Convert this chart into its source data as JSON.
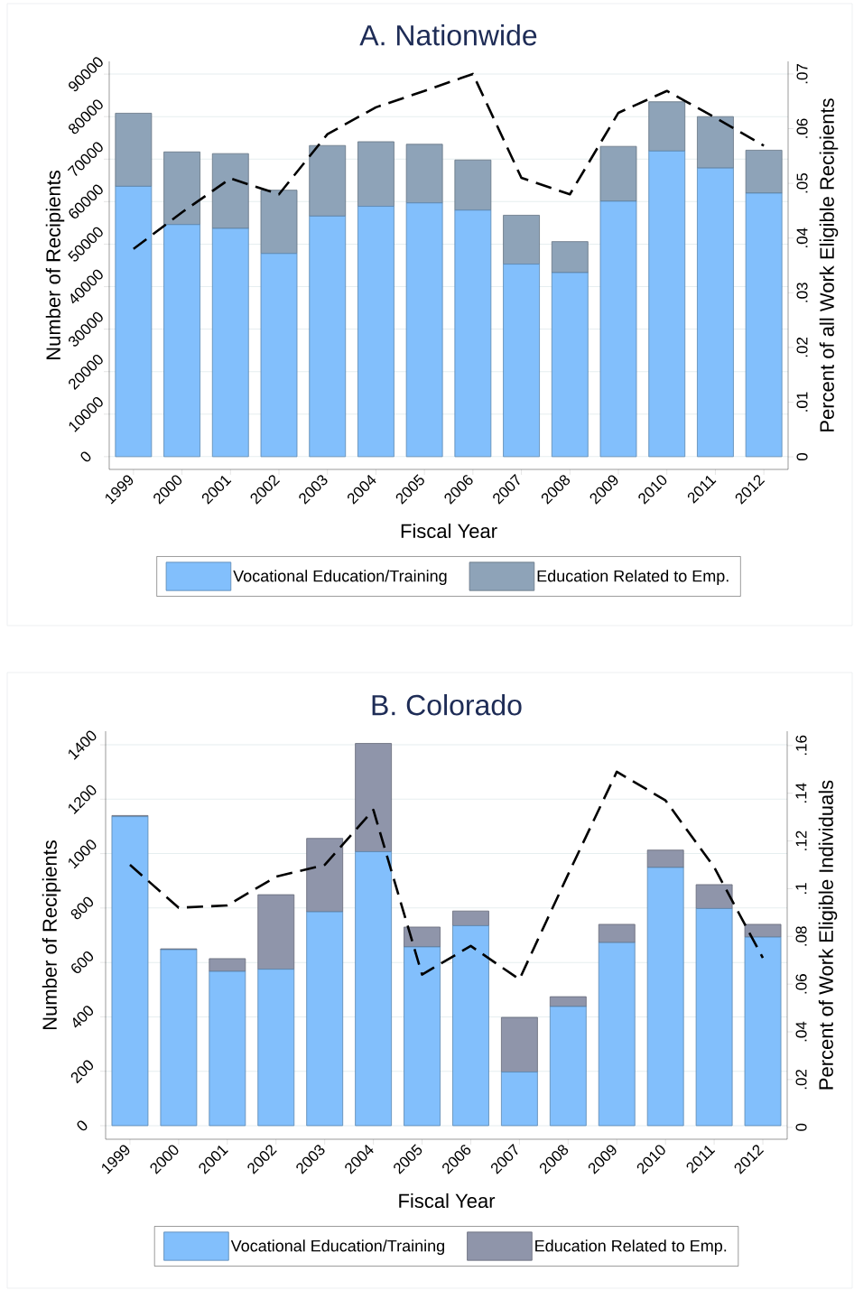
{
  "chart_data": [
    {
      "type": "bar",
      "title": "A. Nationwide",
      "xlabel": "Fiscal Year",
      "ylabel": "Number of Recipients",
      "y2label": "Percent of all Work Eligible Recipients",
      "categories": [
        "1999",
        "2000",
        "2001",
        "2002",
        "2003",
        "2004",
        "2005",
        "2006",
        "2007",
        "2008",
        "2009",
        "2010",
        "2011",
        "2012"
      ],
      "stacked": true,
      "series": [
        {
          "name": "Vocational Education/Training",
          "color": "#82bffc",
          "values": [
            63600,
            54600,
            53700,
            47800,
            56600,
            58900,
            59700,
            58000,
            45300,
            43300,
            60100,
            71900,
            67900,
            62000
          ]
        },
        {
          "name": "Education Related to Emp.",
          "color": "#8ea3b8",
          "values": [
            17200,
            17100,
            17600,
            14900,
            16600,
            15200,
            13800,
            11800,
            11500,
            7300,
            12900,
            11600,
            12100,
            10100
          ]
        },
        {
          "type": "line",
          "axis": "y2",
          "color": "#000000",
          "line_style": "dashed",
          "values": [
            0.038,
            0.0447,
            0.0509,
            0.048,
            0.059,
            0.0639,
            0.0669,
            0.07,
            0.051,
            0.048,
            0.0629,
            0.0669,
            0.062,
            0.0569
          ]
        }
      ],
      "ylim": [
        -3000,
        93000
      ],
      "yticks": [
        0,
        10000,
        20000,
        30000,
        40000,
        50000,
        60000,
        70000,
        80000,
        90000
      ],
      "y2lim": [
        -0.0023,
        0.0723
      ],
      "y2ticks": [
        0,
        {
          "value": 0.01,
          "label": ".01"
        },
        {
          "value": 0.02,
          "label": ".02"
        },
        {
          "value": 0.03,
          "label": ".03"
        },
        {
          "value": 0.04,
          "label": ".04"
        },
        {
          "value": 0.05,
          "label": ".05"
        },
        {
          "value": 0.06,
          "label": ".06"
        },
        {
          "value": 0.07,
          "label": ".07"
        }
      ],
      "grid": "y",
      "legend": "bottom"
    },
    {
      "type": "bar",
      "title": "B. Colorado",
      "xlabel": "Fiscal Year",
      "ylabel": "Number of Recipients",
      "y2label": "Percent of Work Eligible Individuals",
      "categories": [
        "1999",
        "2000",
        "2001",
        "2002",
        "2003",
        "2004",
        "2005",
        "2006",
        "2007",
        "2008",
        "2009",
        "2010",
        "2011",
        "2012"
      ],
      "stacked": true,
      "series": [
        {
          "name": "Vocational Education/Training",
          "color": "#82bffc",
          "values": [
            1136,
            647,
            567,
            575,
            786,
            1007,
            657,
            735,
            197,
            438,
            673,
            949,
            798,
            693
          ]
        },
        {
          "name": "Education Related to Emp.",
          "color": "#8f95aa",
          "values": [
            4,
            3,
            47,
            274,
            270,
            398,
            73,
            54,
            201,
            36,
            67,
            64,
            88,
            47
          ]
        },
        {
          "type": "line",
          "axis": "y2",
          "color": "#000000",
          "line_style": "dashed",
          "values": [
            0.11,
            0.092,
            0.093,
            0.105,
            0.11,
            0.133,
            0.064,
            0.076,
            0.062,
            0.106,
            0.149,
            0.137,
            0.109,
            0.071
          ]
        }
      ],
      "ylim": [
        -50,
        1450
      ],
      "yticks": [
        0,
        200,
        400,
        600,
        800,
        1000,
        1200,
        1400
      ],
      "y2lim": [
        -0.005,
        0.166
      ],
      "y2ticks": [
        0,
        {
          "value": 0.02,
          "label": ".02"
        },
        {
          "value": 0.04,
          "label": ".04"
        },
        {
          "value": 0.06,
          "label": ".06"
        },
        {
          "value": 0.08,
          "label": ".08"
        },
        {
          "value": 0.1,
          "label": ".1"
        },
        {
          "value": 0.12,
          "label": ".12"
        },
        {
          "value": 0.14,
          "label": ".14"
        },
        {
          "value": 0.16,
          "label": ".16"
        }
      ],
      "grid": "y",
      "legend": "bottom"
    }
  ]
}
